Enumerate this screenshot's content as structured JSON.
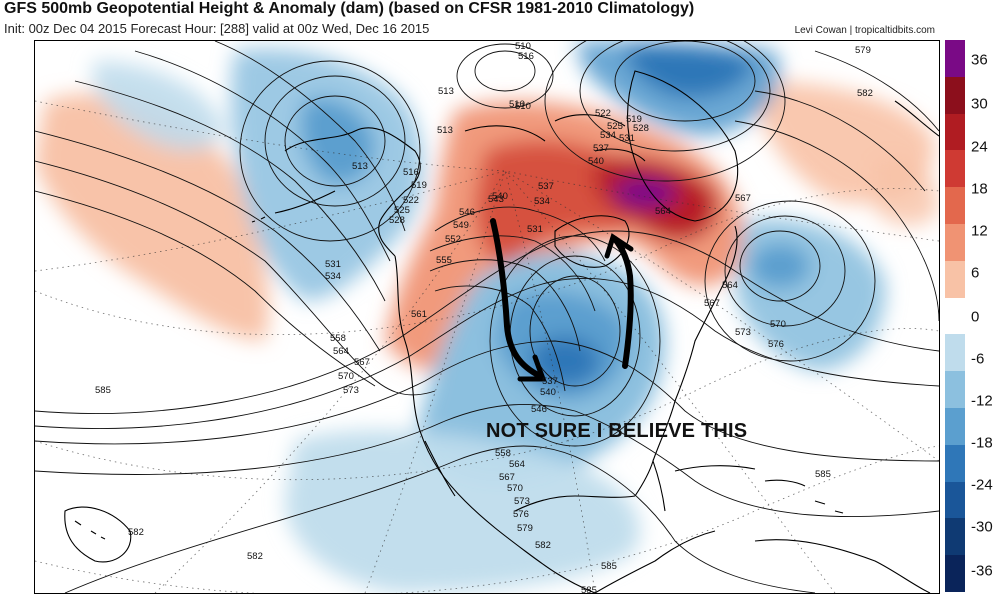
{
  "header": {
    "title": "GFS 500mb Geopotential Height & Anomaly (dam) (based on CFSR 1981-2010 Climatology)",
    "subtitle": "Init: 00z Dec 04 2015   Forecast Hour: [288]   valid at 00z Wed, Dec 16 2015",
    "credit": "Levi Cowan | tropicaltidbits.com"
  },
  "annotation": {
    "text": "NOT SURE I BELIEVE THIS",
    "arrow_color": "#000000"
  },
  "colorbar": {
    "labels": [
      "36",
      "30",
      "24",
      "18",
      "12",
      "6",
      "0",
      "-6",
      "-12",
      "-18",
      "-24",
      "-30",
      "-36"
    ],
    "colors": [
      "#7a0a86",
      "#8c0f1c",
      "#b01c22",
      "#cf3a33",
      "#e3684d",
      "#f09373",
      "#f8c2a6",
      "#ffffff",
      "#bfdcec",
      "#8cc0df",
      "#5b9fcf",
      "#2f77b8",
      "#1a5699",
      "#0f3a73",
      "#0a245a"
    ]
  },
  "contour_labels": [
    {
      "text": "513"
    },
    {
      "text": "516"
    },
    {
      "text": "510"
    },
    {
      "text": "513"
    },
    {
      "text": "510"
    },
    {
      "text": "513"
    },
    {
      "text": "516"
    },
    {
      "text": "519"
    },
    {
      "text": "522"
    },
    {
      "text": "525"
    },
    {
      "text": "528"
    },
    {
      "text": "531"
    },
    {
      "text": "534"
    },
    {
      "text": "510"
    },
    {
      "text": "519"
    },
    {
      "text": "522"
    },
    {
      "text": "525"
    },
    {
      "text": "528"
    },
    {
      "text": "531"
    },
    {
      "text": "534"
    },
    {
      "text": "537"
    },
    {
      "text": "540"
    },
    {
      "text": "540"
    },
    {
      "text": "537"
    },
    {
      "text": "534"
    },
    {
      "text": "543"
    },
    {
      "text": "546"
    },
    {
      "text": "549"
    },
    {
      "text": "552"
    },
    {
      "text": "531"
    },
    {
      "text": "555"
    },
    {
      "text": "561"
    },
    {
      "text": "564"
    },
    {
      "text": "567"
    },
    {
      "text": "564"
    },
    {
      "text": "567"
    },
    {
      "text": "573"
    },
    {
      "text": "570"
    },
    {
      "text": "576"
    },
    {
      "text": "558"
    },
    {
      "text": "564"
    },
    {
      "text": "567"
    },
    {
      "text": "570"
    },
    {
      "text": "573"
    },
    {
      "text": "585"
    },
    {
      "text": "537"
    },
    {
      "text": "540"
    },
    {
      "text": "546"
    },
    {
      "text": "558"
    },
    {
      "text": "564"
    },
    {
      "text": "567"
    },
    {
      "text": "570"
    },
    {
      "text": "573"
    },
    {
      "text": "576"
    },
    {
      "text": "579"
    },
    {
      "text": "582"
    },
    {
      "text": "582"
    },
    {
      "text": "582"
    },
    {
      "text": "585"
    },
    {
      "text": "585"
    },
    {
      "text": "585"
    },
    {
      "text": "579"
    },
    {
      "text": "582"
    }
  ]
}
